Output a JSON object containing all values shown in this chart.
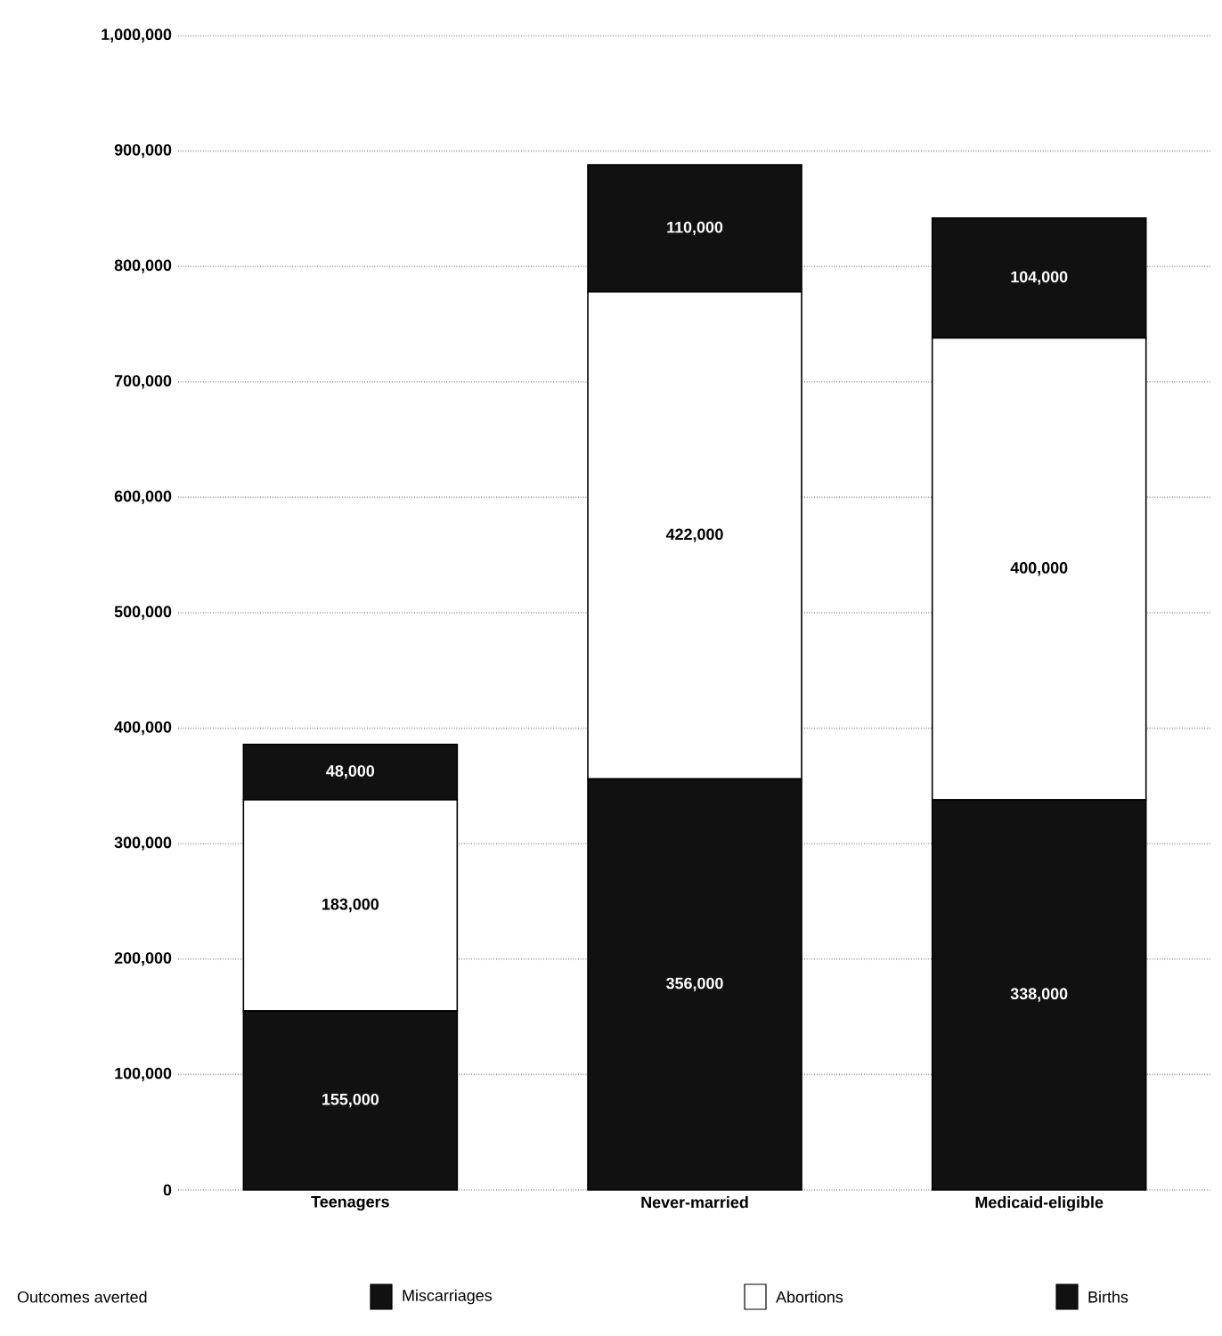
{
  "chart_data": {
    "type": "bar",
    "stacked": true,
    "legend_title": "Outcomes averted",
    "categories": [
      "Teenagers",
      "Never-married",
      "Medicaid-eligible"
    ],
    "series": [
      {
        "name": "Births",
        "color": "#111111",
        "values": [
          155000,
          356000,
          338000
        ],
        "value_labels": [
          "155,000",
          "356,000",
          "338,000"
        ]
      },
      {
        "name": "Abortions",
        "color": "#ffffff",
        "values": [
          183000,
          422000,
          400000
        ],
        "value_labels": [
          "183,000",
          "422,000",
          "400,000"
        ]
      },
      {
        "name": "Miscarriages",
        "color": "#111111",
        "values": [
          48000,
          110000,
          104000
        ],
        "value_labels": [
          "48,000",
          "110,000",
          "104,000"
        ]
      }
    ],
    "ylim": [
      0,
      1000000
    ],
    "yticks": [
      {
        "value": 0,
        "label": "0"
      },
      {
        "value": 100000,
        "label": "100,000"
      },
      {
        "value": 200000,
        "label": "200,000"
      },
      {
        "value": 300000,
        "label": "300,000"
      },
      {
        "value": 400000,
        "label": "400,000"
      },
      {
        "value": 500000,
        "label": "500,000"
      },
      {
        "value": 600000,
        "label": "600,000"
      },
      {
        "value": 700000,
        "label": "700,000"
      },
      {
        "value": 800000,
        "label": "800,000"
      },
      {
        "value": 900000,
        "label": "900,000"
      },
      {
        "value": 1000000,
        "label": "1,000,000"
      }
    ],
    "grid": "y",
    "legend": "bottom"
  }
}
